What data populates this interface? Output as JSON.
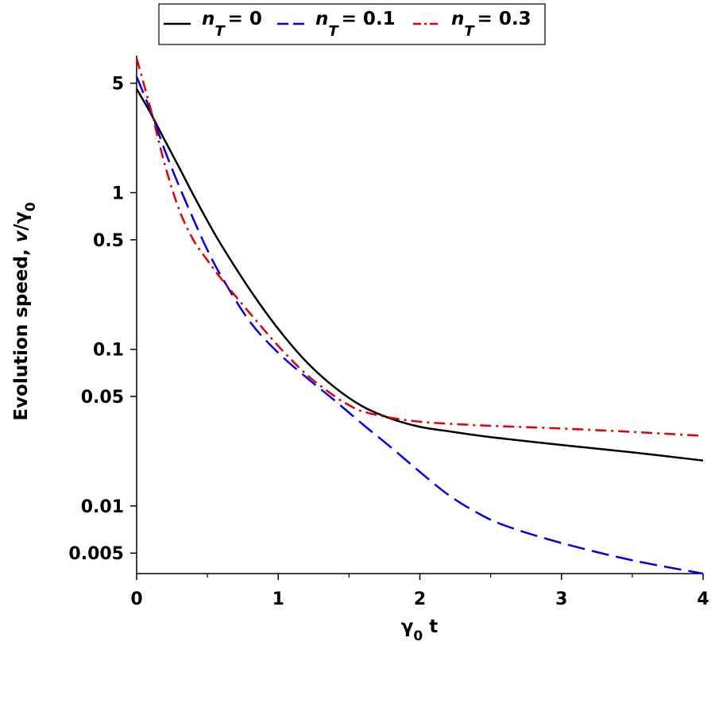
{
  "chart_data": {
    "type": "line",
    "x_axis": {
      "label": "γ",
      "label_sub": "0",
      "label_suffix": " t",
      "range": [
        0,
        4
      ],
      "ticks": [
        {
          "value": 0,
          "label": "0"
        },
        {
          "value": 1,
          "label": "1"
        },
        {
          "value": 2,
          "label": "2"
        },
        {
          "value": 3,
          "label": "3"
        },
        {
          "value": 4,
          "label": "4"
        }
      ]
    },
    "y_axis": {
      "label": "Evolution speed, ",
      "label_italic": "v",
      "label_slash": "/γ",
      "label_sub": "0",
      "scale": "log",
      "range": [
        0.0037,
        7.5
      ],
      "ticks": [
        {
          "value": 0.005,
          "label": "0.005"
        },
        {
          "value": 0.01,
          "label": "0.01"
        },
        {
          "value": 0.05,
          "label": "0.05"
        },
        {
          "value": 0.1,
          "label": "0.1"
        },
        {
          "value": 0.5,
          "label": "0.5"
        },
        {
          "value": 1,
          "label": "1"
        },
        {
          "value": 5,
          "label": "5"
        }
      ]
    },
    "legend": {
      "position": "top-center",
      "prefix": "n",
      "subscript": "T",
      "entries": [
        "= 0",
        "= 0.1",
        "= 0.3"
      ]
    },
    "series": [
      {
        "name": "n_T = 0",
        "legend_value": "= 0",
        "color": "#000000",
        "style": "solid",
        "x": [
          0,
          0.1,
          0.2,
          0.3,
          0.4,
          0.5,
          0.6,
          0.8,
          1.0,
          1.2,
          1.4,
          1.6,
          1.8,
          2.0,
          2.2,
          2.5,
          3.0,
          3.5,
          4.0
        ],
        "y": [
          4.6,
          3.2,
          2.15,
          1.45,
          0.97,
          0.66,
          0.46,
          0.24,
          0.135,
          0.083,
          0.057,
          0.043,
          0.036,
          0.032,
          0.03,
          0.0275,
          0.0245,
          0.022,
          0.0195
        ]
      },
      {
        "name": "n_T = 0.1",
        "legend_value": "= 0.1",
        "color": "#0000ee",
        "style": "dashed",
        "x": [
          0,
          0.1,
          0.2,
          0.3,
          0.4,
          0.5,
          0.6,
          0.8,
          1.0,
          1.2,
          1.4,
          1.6,
          1.8,
          2.0,
          2.2,
          2.4,
          2.6,
          3.0,
          3.5,
          4.0
        ],
        "y": [
          5.5,
          3.3,
          1.85,
          1.1,
          0.68,
          0.43,
          0.29,
          0.15,
          0.095,
          0.066,
          0.047,
          0.033,
          0.0235,
          0.0165,
          0.0118,
          0.0091,
          0.0075,
          0.0058,
          0.0045,
          0.0037
        ]
      },
      {
        "name": "n_T = 0.3",
        "legend_value": "= 0.3",
        "color": "#e00000",
        "style": "dashdot",
        "x": [
          0,
          0.1,
          0.2,
          0.3,
          0.4,
          0.5,
          0.6,
          0.8,
          1.0,
          1.2,
          1.4,
          1.5,
          1.6,
          1.8,
          2.0,
          2.2,
          2.5,
          3.0,
          3.5,
          4.0
        ],
        "y": [
          7.2,
          3.4,
          1.5,
          0.78,
          0.5,
          0.37,
          0.28,
          0.17,
          0.105,
          0.069,
          0.05,
          0.044,
          0.04,
          0.0365,
          0.0345,
          0.0335,
          0.0325,
          0.0312,
          0.0297,
          0.028
        ]
      }
    ]
  }
}
